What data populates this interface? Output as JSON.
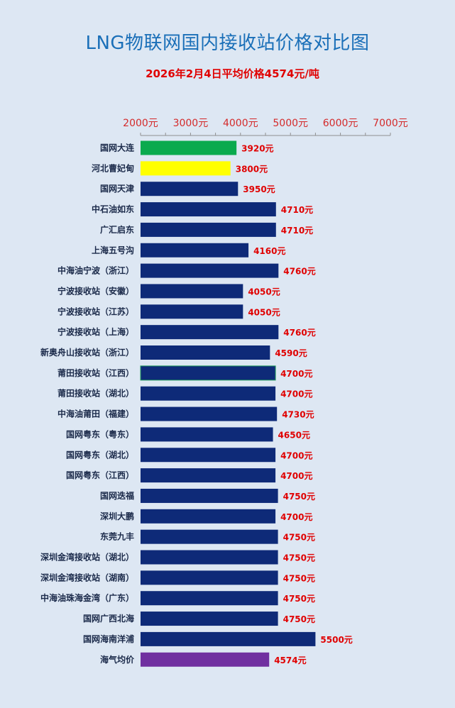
{
  "header": {
    "title": "LNG物联网国内接收站价格对比图",
    "subtitle": "2026年2月4日平均价格4574元/吨"
  },
  "colors": {
    "default_bar": "#0e2a78",
    "highlight_green": "#0aaa4e",
    "highlight_yellow": "#ffff00",
    "average_purple": "#7030a0",
    "value_label": "#e00000",
    "tick_label": "#d42a2a",
    "background": "#dde7f3"
  },
  "chart_data": {
    "type": "bar",
    "orientation": "horizontal",
    "title": "LNG物联网国内接收站价格对比图",
    "subtitle": "2026年2月4日平均价格4574元/吨",
    "xlim": [
      2000,
      7000
    ],
    "xticks": [
      2000,
      3000,
      4000,
      5000,
      6000,
      7000
    ],
    "xtick_labels": [
      "2000元",
      "3000元",
      "4000元",
      "5000元",
      "6000元",
      "7000元"
    ],
    "axis_position": "top",
    "grid": false,
    "categories": [
      "国网大连",
      "河北曹妃甸",
      "国网天津",
      "中石油如东",
      "广汇启东",
      "上海五号沟",
      "中海油宁波（浙江）",
      "宁波接收站（安徽）",
      "宁波接收站（江苏）",
      "宁波接收站（上海）",
      "新奥舟山接收站（浙江）",
      "莆田接收站（江西）",
      "莆田接收站（湖北）",
      "中海油莆田（福建）",
      "国网粤东（粤东）",
      "国网粤东（湖北）",
      "国网粤东（江西）",
      "国网迭福",
      "深圳大鹏",
      "东莞九丰",
      "深圳金湾接收站（湖北）",
      "深圳金湾接收站（湖南）",
      "中海油珠海金湾（广东）",
      "国网广西北海",
      "国网海南洋浦",
      "海气均价"
    ],
    "values": [
      3920,
      3800,
      3950,
      4710,
      4710,
      4160,
      4760,
      4050,
      4050,
      4760,
      4590,
      4700,
      4700,
      4730,
      4650,
      4700,
      4700,
      4750,
      4700,
      4750,
      4750,
      4750,
      4750,
      4750,
      5500,
      4574
    ],
    "value_labels": [
      "3920元",
      "3800元",
      "3950元",
      "4710元",
      "4710元",
      "4160元",
      "4760元",
      "4050元",
      "4050元",
      "4760元",
      "4590元",
      "4700元",
      "4700元",
      "4730元",
      "4650元",
      "4700元",
      "4700元",
      "4750元",
      "4700元",
      "4750元",
      "4750元",
      "4750元",
      "4750元",
      "4750元",
      "5500元",
      "4574元"
    ],
    "bar_colors": [
      "#0aaa4e",
      "#ffff00",
      "#0e2a78",
      "#0e2a78",
      "#0e2a78",
      "#0e2a78",
      "#0e2a78",
      "#0e2a78",
      "#0e2a78",
      "#0e2a78",
      "#0e2a78",
      "#0e2a78",
      "#0e2a78",
      "#0e2a78",
      "#0e2a78",
      "#0e2a78",
      "#0e2a78",
      "#0e2a78",
      "#0e2a78",
      "#0e2a78",
      "#0e2a78",
      "#0e2a78",
      "#0e2a78",
      "#0e2a78",
      "#0e2a78",
      "#7030a0"
    ]
  }
}
